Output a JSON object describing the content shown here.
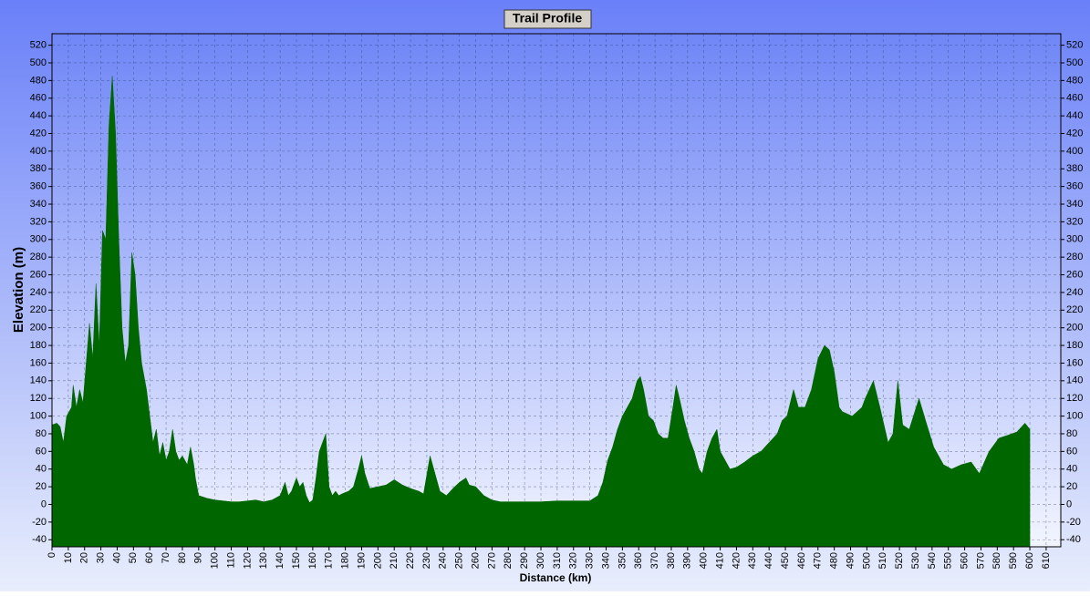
{
  "chart_data": {
    "type": "area",
    "title": "Trail Profile",
    "x_label": "Distance (km)",
    "y_label": "Elevation (m)",
    "color": "#006600",
    "grid": true,
    "xlim": [
      0,
      619
    ],
    "ylim": [
      -48,
      533
    ],
    "xticks": [
      0,
      10,
      20,
      30,
      40,
      50,
      60,
      70,
      80,
      90,
      100,
      110,
      120,
      130,
      140,
      150,
      160,
      170,
      180,
      190,
      200,
      210,
      220,
      230,
      240,
      250,
      260,
      270,
      280,
      290,
      300,
      310,
      320,
      330,
      340,
      350,
      360,
      370,
      380,
      390,
      400,
      410,
      420,
      430,
      440,
      450,
      460,
      470,
      480,
      490,
      500,
      510,
      520,
      530,
      540,
      550,
      560,
      570,
      580,
      590,
      600,
      610
    ],
    "yticks": [
      -40,
      -20,
      0,
      20,
      40,
      60,
      80,
      100,
      120,
      140,
      160,
      180,
      200,
      220,
      240,
      260,
      280,
      300,
      320,
      340,
      360,
      380,
      400,
      420,
      440,
      460,
      480,
      500,
      520
    ],
    "x": [
      0,
      3,
      5,
      7,
      9,
      12,
      13,
      15,
      17,
      19,
      21,
      23,
      25,
      27,
      29,
      31,
      33,
      35,
      37,
      39,
      41,
      43,
      45,
      47,
      49,
      51,
      53,
      55,
      58,
      60,
      62,
      64,
      66,
      68,
      70,
      72,
      74,
      76,
      78,
      80,
      83,
      85,
      87,
      88,
      90,
      95,
      100,
      105,
      110,
      115,
      120,
      125,
      130,
      135,
      140,
      143,
      145,
      147,
      150,
      152,
      154,
      156,
      158,
      160,
      162,
      164,
      166,
      168,
      170,
      172,
      174,
      176,
      178,
      182,
      185,
      188,
      190,
      192,
      195,
      200,
      205,
      210,
      215,
      220,
      225,
      228,
      232,
      235,
      238,
      242,
      246,
      250,
      254,
      256,
      260,
      265,
      270,
      275,
      280,
      290,
      300,
      310,
      320,
      330,
      335,
      338,
      341,
      344,
      347,
      350,
      353,
      356,
      359,
      361,
      363,
      366,
      369,
      372,
      375,
      378,
      381,
      383,
      385,
      388,
      391,
      394,
      397,
      399,
      402,
      405,
      408,
      410,
      413,
      416,
      420,
      425,
      430,
      435,
      440,
      445,
      448,
      451,
      455,
      458,
      462,
      466,
      470,
      474,
      477,
      480,
      483,
      485,
      491,
      497,
      499,
      504,
      508,
      513,
      516,
      519,
      522,
      526,
      532,
      536,
      541,
      547,
      552,
      558,
      564,
      569,
      575,
      581,
      586,
      592,
      597,
      600
    ],
    "values": [
      90,
      92,
      88,
      70,
      100,
      110,
      135,
      110,
      130,
      115,
      160,
      205,
      165,
      250,
      180,
      310,
      300,
      430,
      485,
      420,
      300,
      200,
      160,
      180,
      285,
      260,
      200,
      160,
      130,
      100,
      70,
      85,
      55,
      70,
      50,
      60,
      85,
      60,
      50,
      55,
      45,
      65,
      45,
      30,
      10,
      7,
      5,
      4,
      3,
      3,
      4,
      5,
      3,
      5,
      10,
      25,
      10,
      15,
      30,
      20,
      25,
      10,
      2,
      5,
      30,
      60,
      70,
      80,
      20,
      10,
      15,
      10,
      12,
      15,
      20,
      40,
      55,
      35,
      18,
      20,
      22,
      28,
      22,
      18,
      15,
      12,
      55,
      35,
      15,
      10,
      18,
      25,
      30,
      22,
      20,
      10,
      5,
      3,
      3,
      3,
      3,
      4,
      4,
      4,
      10,
      25,
      50,
      65,
      85,
      100,
      110,
      120,
      140,
      145,
      130,
      100,
      95,
      80,
      75,
      75,
      110,
      135,
      120,
      95,
      75,
      60,
      40,
      35,
      60,
      75,
      85,
      60,
      50,
      40,
      42,
      48,
      55,
      60,
      70,
      80,
      95,
      100,
      130,
      110,
      110,
      130,
      165,
      180,
      175,
      150,
      110,
      105,
      100,
      110,
      120,
      140,
      110,
      70,
      80,
      140,
      90,
      85,
      120,
      95,
      65,
      45,
      40,
      45,
      48,
      35,
      60,
      75,
      78,
      82,
      92,
      85
    ]
  }
}
